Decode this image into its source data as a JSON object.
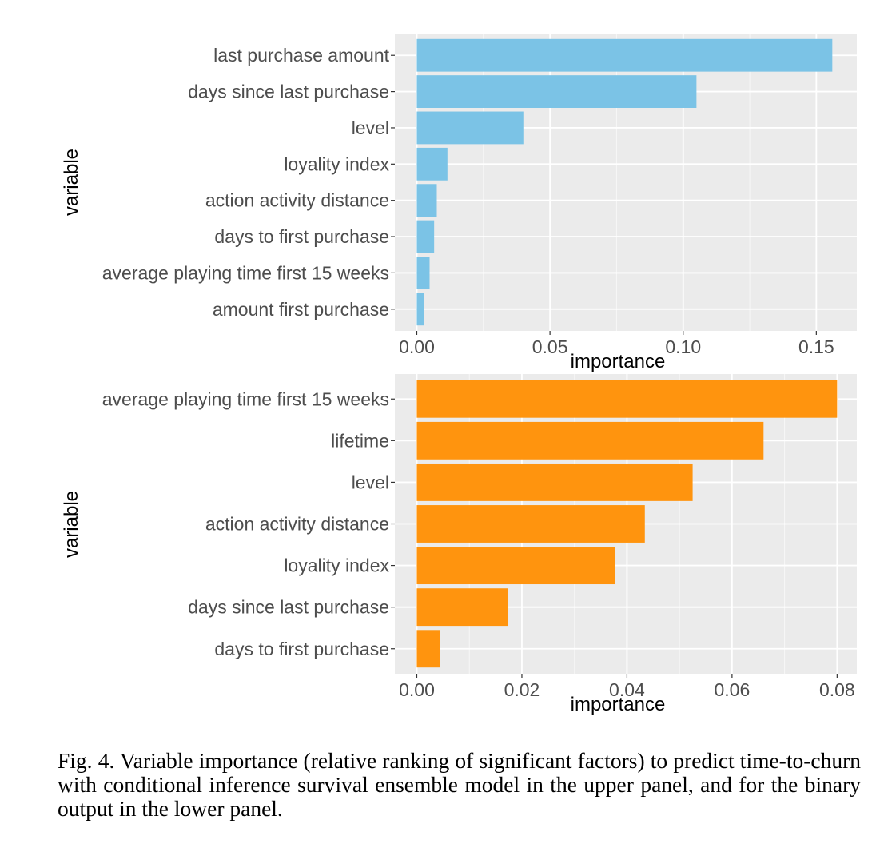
{
  "chart_data": [
    {
      "type": "bar",
      "orientation": "horizontal",
      "xlabel": "importance",
      "ylabel": "variable",
      "xlim": [
        0,
        0.158
      ],
      "xticks": [
        0.0,
        0.05,
        0.1,
        0.15
      ],
      "xtick_labels": [
        "0.00",
        "0.05",
        "0.10",
        "0.15"
      ],
      "grid": true,
      "bar_color": "#7BC3E6",
      "categories": [
        "last purchase amount",
        "days since last purchase",
        "level",
        "loyality index",
        "action activity distance",
        "days to first purchase",
        "average playing time first 15 weeks",
        "amount first purchase"
      ],
      "values": [
        0.156,
        0.105,
        0.04,
        0.0115,
        0.0075,
        0.0065,
        0.0048,
        0.0028
      ]
    },
    {
      "type": "bar",
      "orientation": "horizontal",
      "xlabel": "importance",
      "ylabel": "variable",
      "xlim": [
        0,
        0.0801
      ],
      "xticks": [
        0.0,
        0.02,
        0.04,
        0.06,
        0.08
      ],
      "xtick_labels": [
        "0.00",
        "0.02",
        "0.04",
        "0.06",
        "0.08"
      ],
      "grid": true,
      "bar_color": "#FF940E",
      "categories": [
        "average playing time first 15 weeks",
        "lifetime",
        "level",
        "action activity distance",
        "loyality index",
        "days since last purchase",
        "days to first purchase"
      ],
      "values": [
        0.08,
        0.066,
        0.0525,
        0.0434,
        0.0378,
        0.0174,
        0.0044
      ]
    }
  ],
  "caption": "Fig. 4.  Variable importance (relative ranking of significant factors) to predict time-to-churn with conditional inference survival ensemble model in the upper panel, and for the binary output in the lower panel."
}
